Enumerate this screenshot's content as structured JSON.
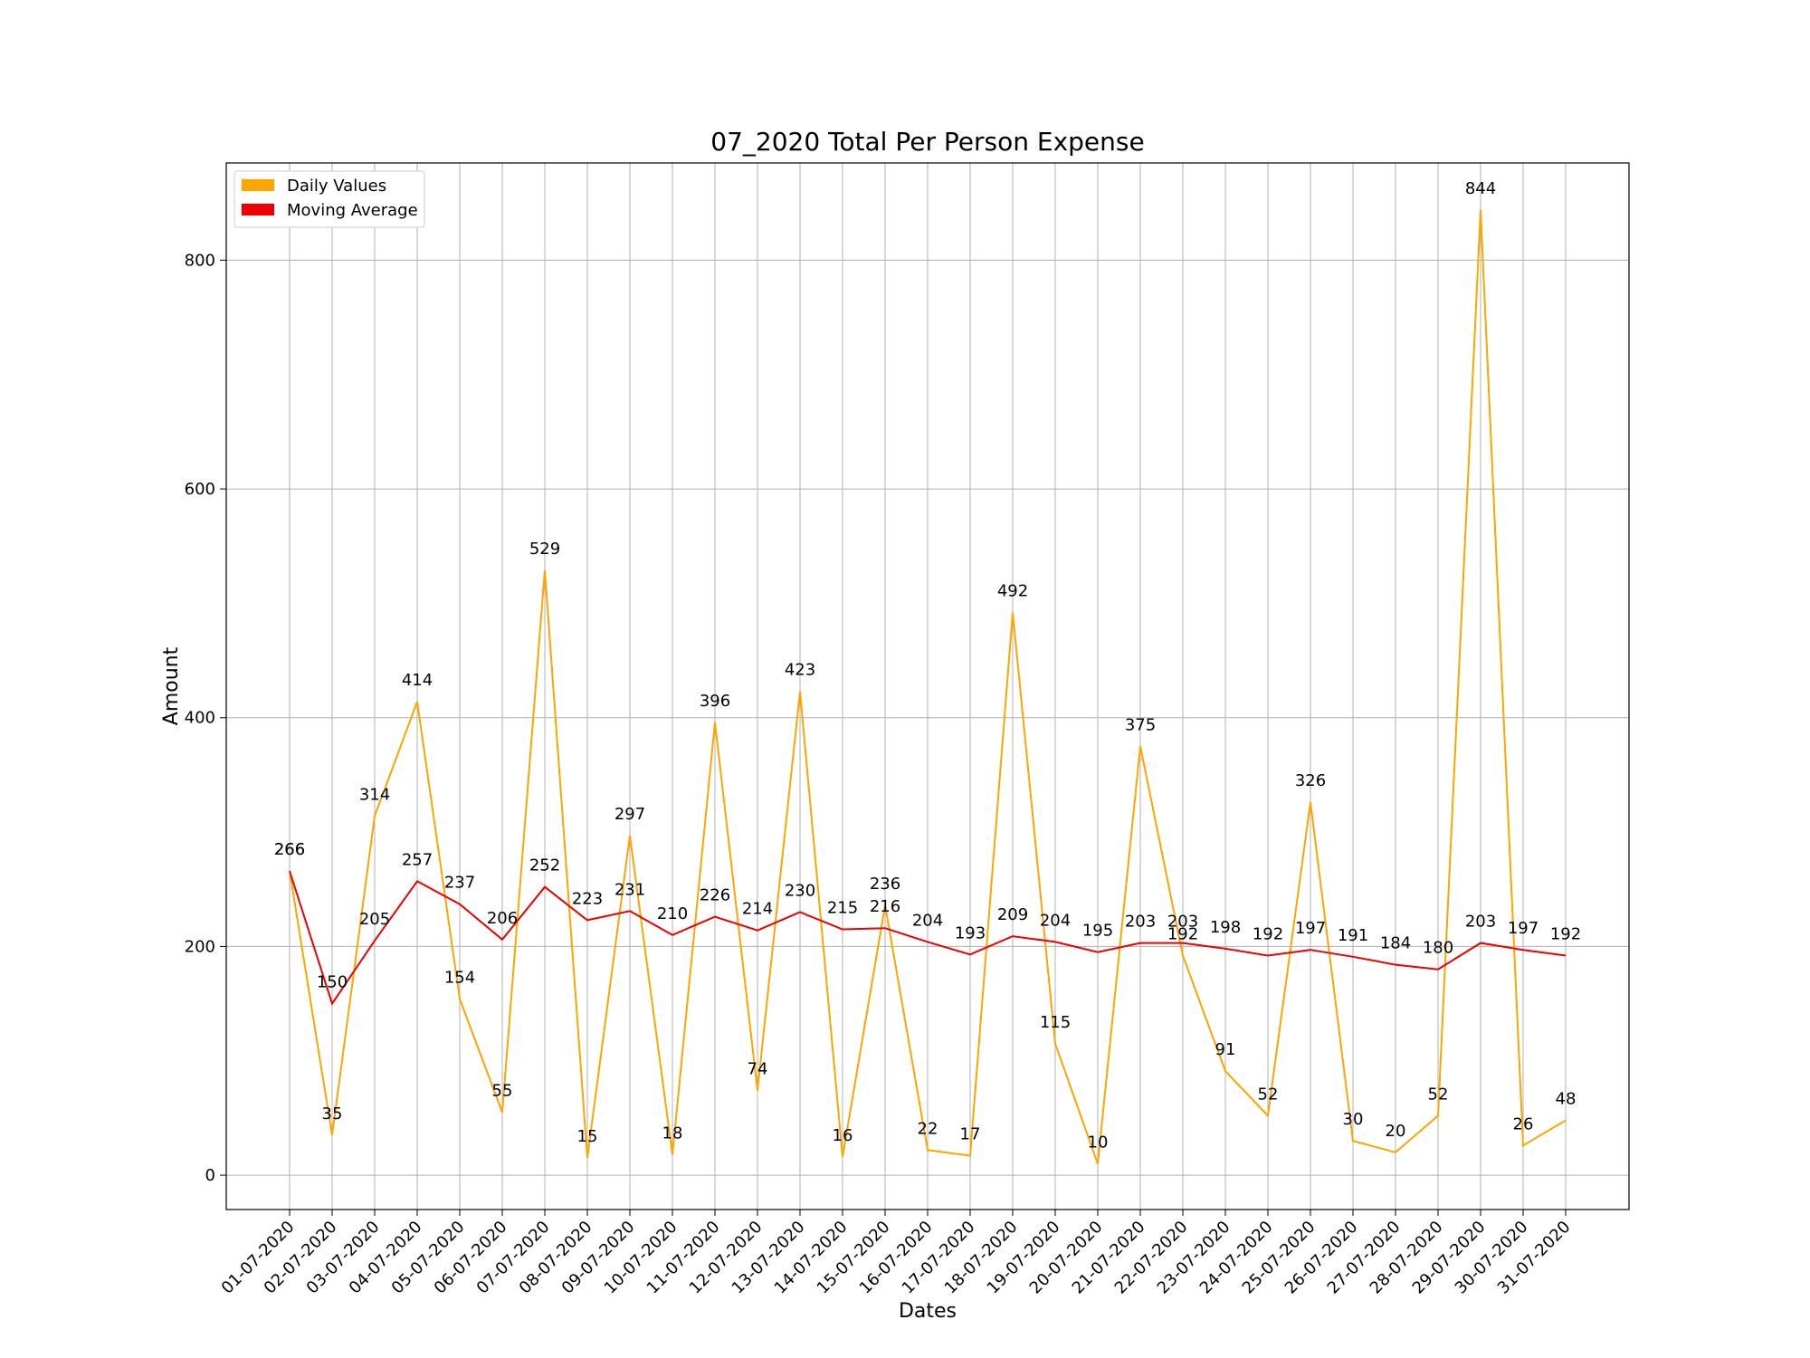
{
  "chart_data": {
    "type": "line",
    "title": "07_2020 Total Per Person Expense",
    "xlabel": "Dates",
    "ylabel": "Amount",
    "ylim": [
      -30,
      885
    ],
    "yticks": [
      0,
      200,
      400,
      600,
      800
    ],
    "grid": true,
    "legend_position": "top-left",
    "categories": [
      "01-07-2020",
      "02-07-2020",
      "03-07-2020",
      "04-07-2020",
      "05-07-2020",
      "06-07-2020",
      "07-07-2020",
      "08-07-2020",
      "09-07-2020",
      "10-07-2020",
      "11-07-2020",
      "12-07-2020",
      "13-07-2020",
      "14-07-2020",
      "15-07-2020",
      "16-07-2020",
      "17-07-2020",
      "18-07-2020",
      "19-07-2020",
      "20-07-2020",
      "21-07-2020",
      "22-07-2020",
      "23-07-2020",
      "24-07-2020",
      "25-07-2020",
      "26-07-2020",
      "27-07-2020",
      "28-07-2020",
      "29-07-2020",
      "30-07-2020",
      "31-07-2020"
    ],
    "series": [
      {
        "name": "Daily Values",
        "color": "#ffa500",
        "values": [
          266,
          35,
          314,
          414,
          154,
          55,
          529,
          15,
          297,
          18,
          396,
          74,
          423,
          16,
          236,
          22,
          17,
          492,
          115,
          10,
          375,
          192,
          91,
          52,
          326,
          30,
          20,
          52,
          844,
          26,
          48
        ]
      },
      {
        "name": "Moving Average",
        "color": "#ee0000",
        "values": [
          266,
          150,
          205,
          257,
          237,
          206,
          252,
          223,
          231,
          210,
          226,
          214,
          230,
          215,
          216,
          204,
          193,
          209,
          204,
          195,
          203,
          203,
          198,
          192,
          197,
          191,
          184,
          180,
          203,
          197,
          192
        ]
      }
    ]
  }
}
